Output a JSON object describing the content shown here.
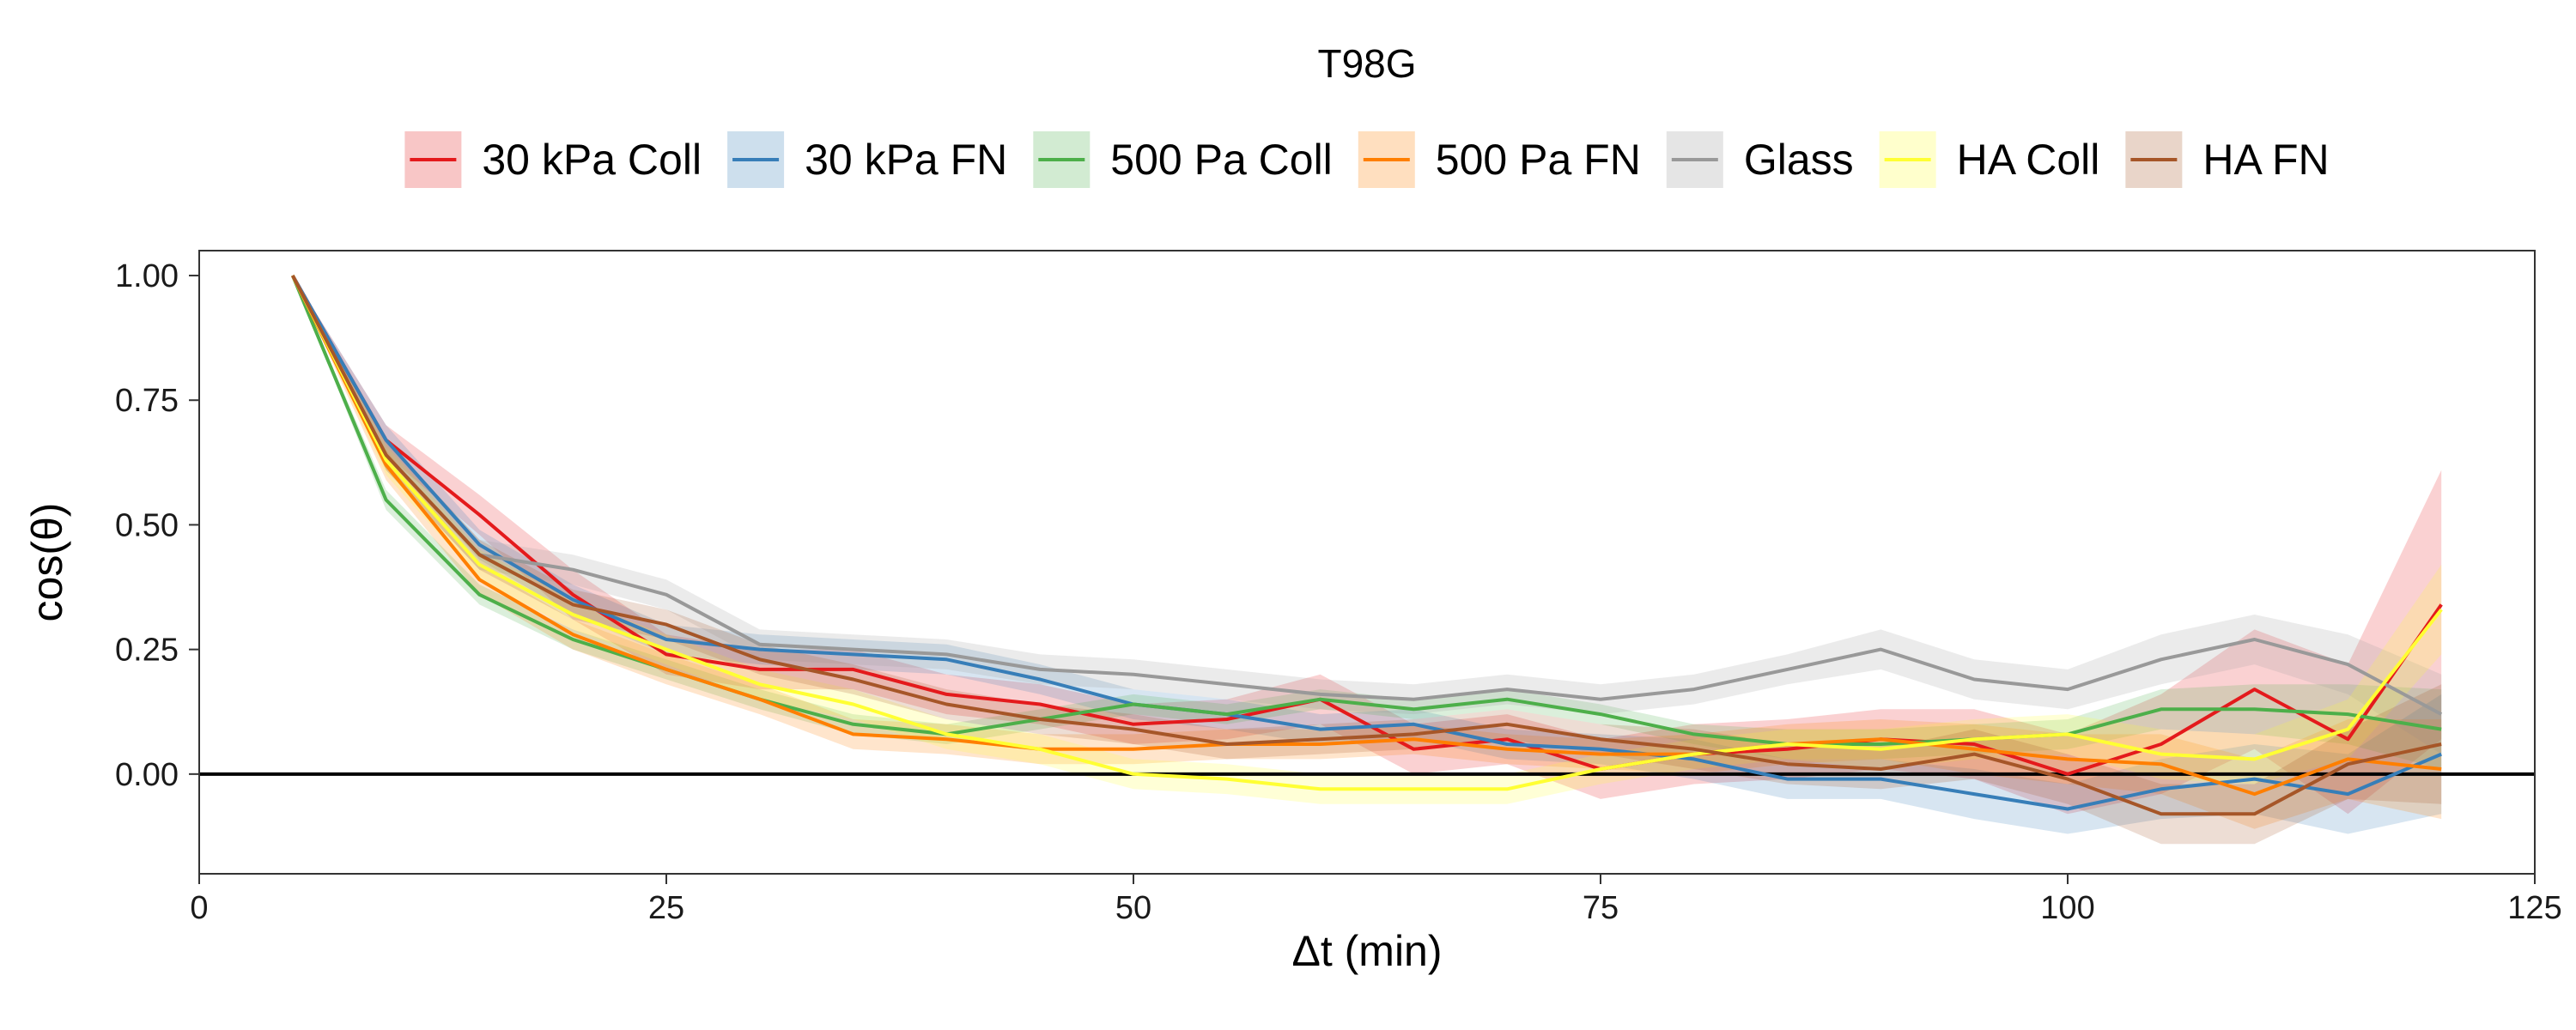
{
  "chart_data": {
    "type": "line",
    "title": "T98G",
    "xlabel": "Δt (min)",
    "ylabel": "cos(θ)",
    "xlim": [
      0,
      125
    ],
    "ylim": [
      -0.2,
      1.05
    ],
    "x_ticks": [
      0,
      25,
      50,
      75,
      100,
      125
    ],
    "x_tick_labels": [
      "0",
      "25",
      "50",
      "75",
      "100",
      "125"
    ],
    "y_ticks": [
      0,
      0.25,
      0.5,
      0.75,
      1.0
    ],
    "y_tick_labels": [
      "0.00",
      "0.25",
      "0.50",
      "0.75",
      "1.00"
    ],
    "reference_line_y": 0,
    "legend_position": "top",
    "grid": false,
    "x": [
      5,
      10,
      15,
      20,
      25,
      30,
      35,
      40,
      45,
      50,
      55,
      60,
      65,
      70,
      75,
      80,
      85,
      90,
      95,
      100,
      105,
      110,
      115,
      120
    ],
    "series": [
      {
        "name": "30 kPa Coll",
        "color": "#e41a1c",
        "values": [
          1.0,
          0.67,
          0.52,
          0.36,
          0.24,
          0.21,
          0.21,
          0.16,
          0.14,
          0.1,
          0.11,
          0.15,
          0.05,
          0.07,
          0.01,
          0.04,
          0.05,
          0.07,
          0.06,
          0.0,
          0.06,
          0.17,
          0.07,
          0.34
        ],
        "band": [
          0.0,
          0.03,
          0.04,
          0.05,
          0.04,
          0.04,
          0.04,
          0.04,
          0.04,
          0.04,
          0.04,
          0.05,
          0.05,
          0.05,
          0.06,
          0.06,
          0.06,
          0.06,
          0.07,
          0.08,
          0.1,
          0.12,
          0.15,
          0.27
        ]
      },
      {
        "name": "30 kPa FN",
        "color": "#377eb8",
        "values": [
          1.0,
          0.67,
          0.46,
          0.35,
          0.27,
          0.25,
          0.24,
          0.23,
          0.19,
          0.14,
          0.12,
          0.09,
          0.1,
          0.06,
          0.05,
          0.03,
          -0.01,
          -0.01,
          -0.04,
          -0.07,
          -0.03,
          -0.01,
          -0.04,
          0.04
        ],
        "band": [
          0.0,
          0.03,
          0.03,
          0.03,
          0.03,
          0.03,
          0.03,
          0.03,
          0.03,
          0.03,
          0.03,
          0.03,
          0.03,
          0.03,
          0.03,
          0.04,
          0.04,
          0.04,
          0.05,
          0.05,
          0.06,
          0.07,
          0.08,
          0.12
        ]
      },
      {
        "name": "500 Pa Coll",
        "color": "#4daf4a",
        "values": [
          1.0,
          0.55,
          0.36,
          0.27,
          0.21,
          0.15,
          0.1,
          0.08,
          0.11,
          0.14,
          0.12,
          0.15,
          0.13,
          0.15,
          0.12,
          0.08,
          0.06,
          0.06,
          0.07,
          0.08,
          0.13,
          0.13,
          0.12,
          0.09
        ],
        "band": [
          0.0,
          0.02,
          0.02,
          0.02,
          0.02,
          0.02,
          0.02,
          0.02,
          0.02,
          0.02,
          0.02,
          0.02,
          0.02,
          0.02,
          0.02,
          0.02,
          0.03,
          0.03,
          0.03,
          0.03,
          0.04,
          0.05,
          0.06,
          0.08
        ]
      },
      {
        "name": "500 Pa FN",
        "color": "#ff7f00",
        "values": [
          1.0,
          0.62,
          0.39,
          0.28,
          0.21,
          0.15,
          0.08,
          0.07,
          0.05,
          0.05,
          0.06,
          0.06,
          0.07,
          0.05,
          0.04,
          0.04,
          0.06,
          0.07,
          0.05,
          0.03,
          0.02,
          -0.04,
          0.03,
          0.01
        ],
        "band": [
          0.0,
          0.03,
          0.03,
          0.03,
          0.03,
          0.03,
          0.03,
          0.03,
          0.03,
          0.03,
          0.03,
          0.03,
          0.03,
          0.03,
          0.03,
          0.04,
          0.04,
          0.04,
          0.05,
          0.05,
          0.06,
          0.07,
          0.08,
          0.1
        ]
      },
      {
        "name": "Glass",
        "color": "#999999",
        "values": [
          1.0,
          0.64,
          0.44,
          0.41,
          0.36,
          0.26,
          0.25,
          0.24,
          0.21,
          0.2,
          0.18,
          0.16,
          0.15,
          0.17,
          0.15,
          0.17,
          0.21,
          0.25,
          0.19,
          0.17,
          0.23,
          0.27,
          0.22,
          0.12
        ],
        "band": [
          0.0,
          0.03,
          0.03,
          0.03,
          0.03,
          0.03,
          0.03,
          0.03,
          0.03,
          0.03,
          0.03,
          0.03,
          0.03,
          0.03,
          0.03,
          0.03,
          0.03,
          0.04,
          0.04,
          0.04,
          0.05,
          0.05,
          0.06,
          0.08
        ]
      },
      {
        "name": "HA Coll",
        "color": "#ffff33",
        "values": [
          1.0,
          0.63,
          0.42,
          0.32,
          0.25,
          0.18,
          0.14,
          0.08,
          0.05,
          0.0,
          -0.01,
          -0.03,
          -0.03,
          -0.03,
          0.01,
          0.04,
          0.06,
          0.05,
          0.07,
          0.08,
          0.04,
          0.03,
          0.09,
          0.33
        ],
        "band": [
          0.0,
          0.03,
          0.03,
          0.03,
          0.03,
          0.03,
          0.03,
          0.03,
          0.03,
          0.03,
          0.03,
          0.03,
          0.03,
          0.03,
          0.03,
          0.03,
          0.03,
          0.04,
          0.04,
          0.04,
          0.05,
          0.05,
          0.06,
          0.09
        ]
      },
      {
        "name": "HA FN",
        "color": "#a65628",
        "values": [
          1.0,
          0.64,
          0.44,
          0.34,
          0.3,
          0.23,
          0.19,
          0.14,
          0.11,
          0.09,
          0.06,
          0.07,
          0.08,
          0.1,
          0.07,
          0.05,
          0.02,
          0.01,
          0.04,
          -0.01,
          -0.08,
          -0.08,
          0.02,
          0.06
        ],
        "band": [
          0.0,
          0.03,
          0.03,
          0.03,
          0.03,
          0.03,
          0.03,
          0.03,
          0.03,
          0.03,
          0.03,
          0.03,
          0.03,
          0.03,
          0.03,
          0.04,
          0.04,
          0.04,
          0.05,
          0.05,
          0.06,
          0.06,
          0.07,
          0.12
        ]
      }
    ]
  }
}
